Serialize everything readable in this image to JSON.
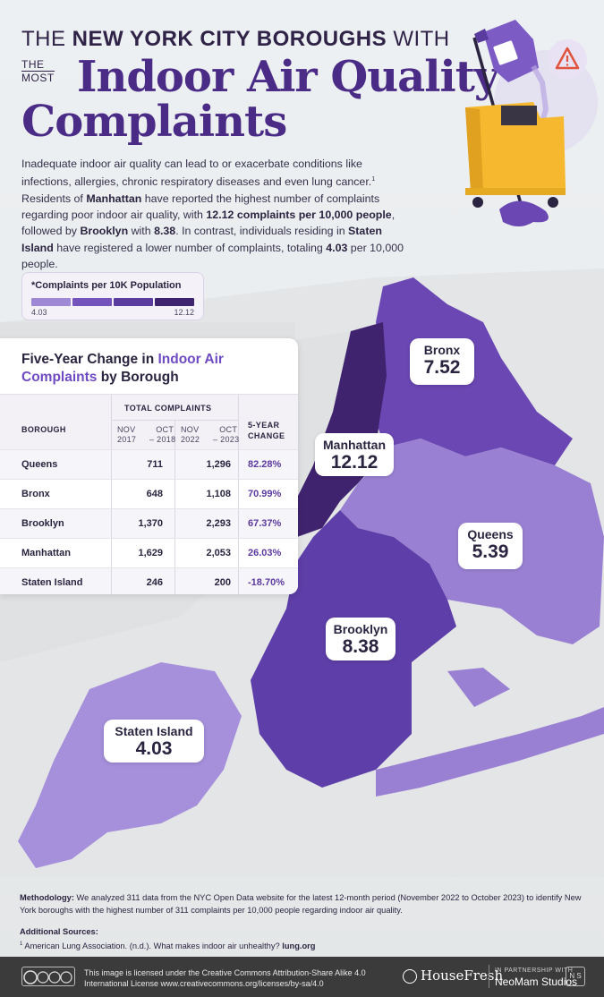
{
  "header": {
    "line1_prefix": "THE ",
    "line1_bold": "NEW YORK CITY BOROUGHS",
    "line1_suffix": " WITH",
    "the": "THE",
    "most": "MOST",
    "big1": "Indoor Air Quality",
    "big2": "Complaints"
  },
  "intro": {
    "p1": "Inadequate indoor air quality can lead to or exacerbate conditions like infections, allergies, chronic respiratory diseases and even lung cancer.",
    "sup": "1",
    "p2": " Residents of ",
    "manhattan": "Manhattan",
    "p3": " have reported the highest number of complaints regarding poor indoor air quality, with ",
    "rate_text": "12.12 complaints per 10,000 people",
    "p4": ", followed by ",
    "brooklyn": "Brooklyn",
    "p5": " with ",
    "brooklyn_val": "8.38",
    "p6": ". In contrast, individuals residing in ",
    "staten": "Staten Island",
    "p7": " have registered a lower number of complaints, totaling ",
    "staten_val": "4.03",
    "p8": " per 10,000 people."
  },
  "legend": {
    "title": "*Complaints per 10K Population",
    "min": "4.03",
    "max": "12.12",
    "colors": [
      "#9f88d6",
      "#7553bd",
      "#5a3b9e",
      "#40236f"
    ]
  },
  "table": {
    "title_a": "Five-Year Change in ",
    "title_hl": "Indoor Air",
    "title_b": "Complaints",
    "title_c": " by Borough",
    "total_header": "TOTAL COMPLAINTS",
    "borough_header": "BOROUGH",
    "p1_a": "NOV",
    "p1_b": "2017",
    "p1_c": "OCT",
    "p1_d": "2018",
    "p2_a": "NOV",
    "p2_b": "2022",
    "p2_c": "OCT",
    "p2_d": "2023",
    "change_a": "5-YEAR",
    "change_b": "CHANGE",
    "rows": [
      {
        "name": "Queens",
        "v2018": "711",
        "v2023": "1,296",
        "change": "82.28%"
      },
      {
        "name": "Bronx",
        "v2018": "648",
        "v2023": "1,108",
        "change": "70.99%"
      },
      {
        "name": "Brooklyn",
        "v2018": "1,370",
        "v2023": "2,293",
        "change": "67.37%"
      },
      {
        "name": "Manhattan",
        "v2018": "1,629",
        "v2023": "2,053",
        "change": "26.03%"
      },
      {
        "name": "Staten Island",
        "v2018": "246",
        "v2023": "200",
        "change": "-18.70%"
      }
    ]
  },
  "chart_data": {
    "type": "table",
    "title": "Five-Year Change in Indoor Air Complaints by Borough",
    "columns": [
      "Borough",
      "Nov 2017 – Oct 2018",
      "Nov 2022 – Oct 2023",
      "5-Year Change"
    ],
    "rows": [
      [
        "Queens",
        711,
        1296,
        "82.28%"
      ],
      [
        "Bronx",
        648,
        1108,
        "70.99%"
      ],
      [
        "Brooklyn",
        1370,
        2293,
        "67.37%"
      ],
      [
        "Manhattan",
        1629,
        2053,
        "26.03%"
      ],
      [
        "Staten Island",
        246,
        200,
        "-18.70%"
      ]
    ],
    "map_values": {
      "Bronx": 7.52,
      "Manhattan": 12.12,
      "Queens": 5.39,
      "Brooklyn": 8.38,
      "Staten Island": 4.03
    }
  },
  "map": {
    "bronx": {
      "name": "Bronx",
      "value": "7.52",
      "color": "#6a47b3"
    },
    "manhattan": {
      "name": "Manhattan",
      "value": "12.12",
      "color": "#40236f"
    },
    "queens": {
      "name": "Queens",
      "value": "5.39",
      "color": "#9a80d3"
    },
    "brooklyn": {
      "name": "Brooklyn",
      "value": "8.38",
      "color": "#5e3ea8"
    },
    "staten": {
      "name": "Staten Island",
      "value": "4.03",
      "color": "#a68fdb"
    }
  },
  "methodology": {
    "label": "Methodology:",
    "text": " We analyzed 311 data from the NYC Open Data website for the latest 12-month period (November 2022 to October 2023) to identify New York boroughs with the highest number of 311 complaints per 10,000 people regarding indoor air quality."
  },
  "sources": {
    "label": "Additional Sources:",
    "sup": "1",
    "text": " American Lung Association. (n.d.). What makes indoor air unhealthy? ",
    "link": "lung.org"
  },
  "footer": {
    "license_l1": "This image is licensed under the Creative Commons Attribution-Share Alike 4.0",
    "license_l2": "International License www.creativecommons.org/licenses/by-sa/4.0",
    "cc_icons": "cc by nc sa",
    "brand": "HouseFresh",
    "partner": "IN PARTNERSHIP WITH",
    "studio": "NeoMam Studios",
    "studio_mark": "N S"
  },
  "illustration": {
    "icons": [
      "mop-bucket-icon",
      "bleach-bottle-icon",
      "warning-icon"
    ]
  }
}
